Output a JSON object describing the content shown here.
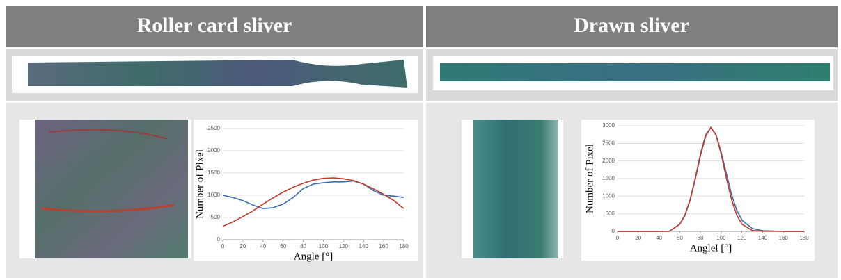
{
  "panels": [
    {
      "title": "Roller card sliver"
    },
    {
      "title": "Drawn sliver"
    }
  ],
  "chart_data": [
    {
      "type": "line",
      "x_label": "Angle [°]",
      "y_label": "Number of Pixel",
      "x": [
        0,
        10,
        20,
        30,
        40,
        50,
        60,
        70,
        80,
        90,
        100,
        110,
        120,
        130,
        140,
        150,
        160,
        170,
        180
      ],
      "series": [
        {
          "color": "#3a6db4",
          "values": [
            1000,
            950,
            880,
            780,
            700,
            720,
            800,
            950,
            1150,
            1250,
            1280,
            1300,
            1300,
            1320,
            1250,
            1100,
            1000,
            980,
            950
          ]
        },
        {
          "color": "#c0392b",
          "values": [
            300,
            400,
            520,
            650,
            800,
            940,
            1070,
            1180,
            1270,
            1340,
            1380,
            1390,
            1370,
            1330,
            1250,
            1140,
            1020,
            880,
            700
          ]
        }
      ],
      "xlim": [
        0,
        180
      ],
      "ylim": [
        0,
        2500
      ],
      "xticks": [
        0,
        20,
        40,
        60,
        80,
        100,
        120,
        140,
        160,
        180
      ],
      "yticks": [
        0,
        500,
        1000,
        1500,
        2000,
        2500
      ],
      "grid": true
    },
    {
      "type": "line",
      "x_label": "Anglel [°]",
      "y_label": "Number of Pixel",
      "x": [
        0,
        20,
        40,
        50,
        60,
        65,
        70,
        75,
        80,
        85,
        90,
        95,
        100,
        105,
        110,
        115,
        120,
        130,
        140,
        160,
        180
      ],
      "series": [
        {
          "color": "#3a6db4",
          "values": [
            0,
            0,
            0,
            5,
            200,
            450,
            880,
            1480,
            2150,
            2700,
            2950,
            2750,
            2250,
            1650,
            1050,
            600,
            320,
            80,
            20,
            0,
            0
          ]
        },
        {
          "color": "#c0392b",
          "values": [
            0,
            0,
            0,
            0,
            204,
            464,
            902,
            1516,
            2195,
            2740,
            2950,
            2740,
            2195,
            1516,
            902,
            464,
            204,
            26,
            3,
            0,
            0
          ]
        }
      ],
      "xlim": [
        0,
        180
      ],
      "ylim": [
        0,
        3000
      ],
      "xticks": [
        0,
        20,
        40,
        60,
        80,
        100,
        120,
        140,
        160,
        180
      ],
      "yticks": [
        0,
        500,
        1000,
        1500,
        2000,
        2500,
        3000
      ],
      "grid": true
    }
  ]
}
